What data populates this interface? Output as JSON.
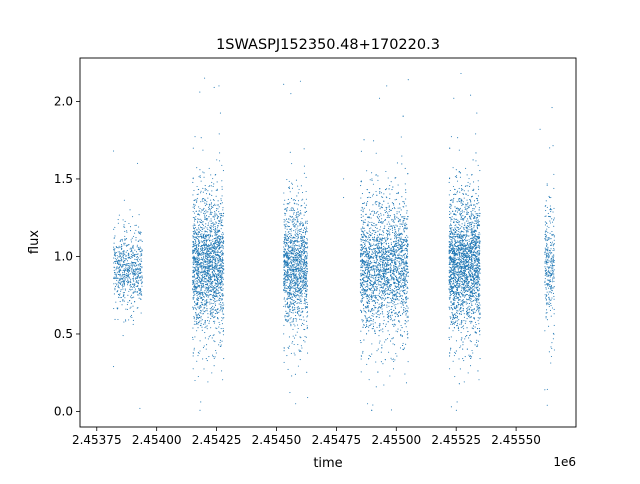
{
  "chart_data": {
    "type": "scatter",
    "title": "1SWASPJ152350.48+170220.3",
    "xlabel": "time",
    "ylabel": "flux",
    "x_offset_label": "1e6",
    "x_display_multiplier": 1000000,
    "xlim": [
      2.45368,
      2.45575
    ],
    "ylim": [
      -0.1,
      2.28
    ],
    "x_ticks": [
      2.45375,
      2.454,
      2.45425,
      2.4545,
      2.45475,
      2.455,
      2.45525,
      2.4555
    ],
    "x_tick_labels": [
      "2.45375",
      "2.45400",
      "2.45425",
      "2.45450",
      "2.45475",
      "2.45500",
      "2.45525",
      "2.45550"
    ],
    "y_ticks": [
      0.0,
      0.5,
      1.0,
      1.5,
      2.0
    ],
    "y_tick_labels": [
      "0.0",
      "0.5",
      "1.0",
      "1.5",
      "2.0"
    ],
    "grid": false,
    "legend": "none",
    "marker_color": "#1f77b4",
    "series": [
      {
        "clusters": [
          {
            "x_range": [
              2.45382,
              2.45394
            ],
            "center": 0.91,
            "spread": 0.12,
            "count": 650
          },
          {
            "x_range": [
              2.45415,
              2.45428
            ],
            "center": 0.95,
            "spread": 0.22,
            "count": 1900
          },
          {
            "x_range": [
              2.45453,
              2.45463
            ],
            "center": 0.93,
            "spread": 0.2,
            "count": 1350
          },
          {
            "x_range": [
              2.45485,
              2.45505
            ],
            "center": 0.93,
            "spread": 0.22,
            "count": 2600
          },
          {
            "x_range": [
              2.45522,
              2.45535
            ],
            "center": 0.95,
            "spread": 0.22,
            "count": 2500
          },
          {
            "x_range": [
              2.45562,
              2.45566
            ],
            "center": 0.95,
            "spread": 0.2,
            "count": 320
          }
        ],
        "outliers": [
          {
            "x": 2.45382,
            "y": 1.68
          },
          {
            "x": 2.45382,
            "y": 0.29
          },
          {
            "x": 2.45393,
            "y": 0.02
          },
          {
            "x": 2.45392,
            "y": 1.6
          },
          {
            "x": 2.45418,
            "y": 2.06
          },
          {
            "x": 2.45424,
            "y": 2.09
          },
          {
            "x": 2.45426,
            "y": 2.1
          },
          {
            "x": 2.4542,
            "y": 2.15
          },
          {
            "x": 2.45416,
            "y": 0.2
          },
          {
            "x": 2.45453,
            "y": 2.11
          },
          {
            "x": 2.45456,
            "y": 2.05
          },
          {
            "x": 2.45458,
            "y": 0.05
          },
          {
            "x": 2.4546,
            "y": 2.13
          },
          {
            "x": 2.45463,
            "y": 0.09
          },
          {
            "x": 2.45478,
            "y": 1.5
          },
          {
            "x": 2.45478,
            "y": 1.38
          },
          {
            "x": 2.45488,
            "y": 0.05
          },
          {
            "x": 2.45493,
            "y": 2.02
          },
          {
            "x": 2.45496,
            "y": 2.1
          },
          {
            "x": 2.45498,
            "y": 0.01
          },
          {
            "x": 2.45505,
            "y": 2.14
          },
          {
            "x": 2.45523,
            "y": 0.03
          },
          {
            "x": 2.45527,
            "y": 2.18
          },
          {
            "x": 2.45531,
            "y": 2.04
          },
          {
            "x": 2.45524,
            "y": 2.02
          },
          {
            "x": 2.4556,
            "y": 1.82
          },
          {
            "x": 2.45562,
            "y": 0.14
          },
          {
            "x": 2.45563,
            "y": 0.04
          },
          {
            "x": 2.45565,
            "y": 1.96
          },
          {
            "x": 2.45564,
            "y": 1.7
          }
        ]
      }
    ]
  }
}
